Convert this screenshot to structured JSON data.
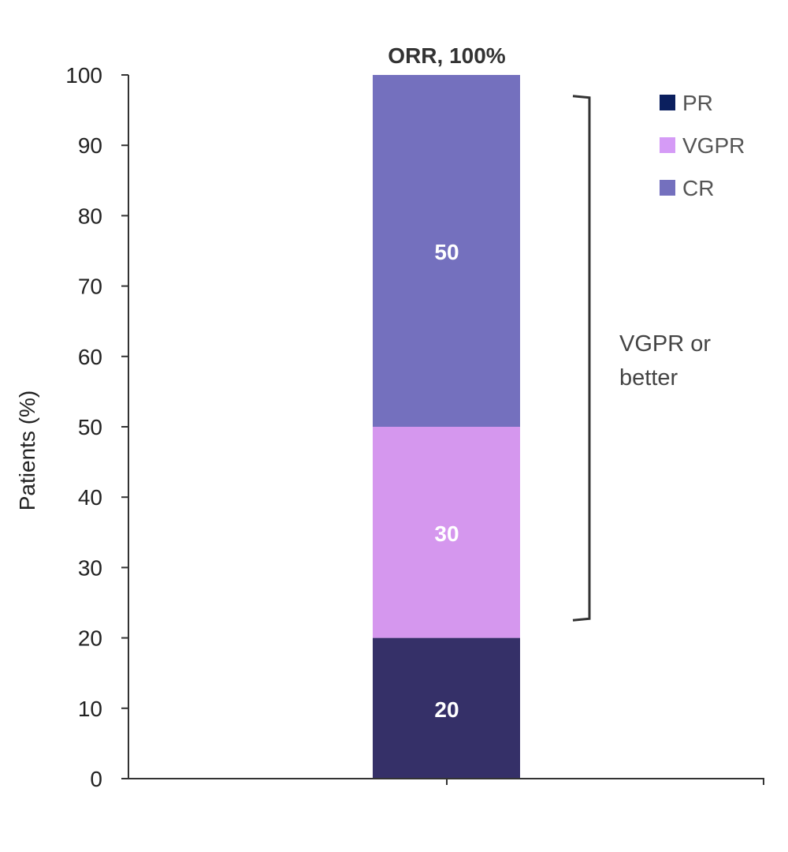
{
  "chart_data": {
    "type": "bar",
    "stacked": true,
    "categories": [
      ""
    ],
    "series": [
      {
        "name": "PR",
        "values": [
          20
        ],
        "color": "#353068",
        "legend_color": "#0b1f5e"
      },
      {
        "name": "VGPR",
        "values": [
          30
        ],
        "color": "#d597ee",
        "legend_color": "#d59bf6"
      },
      {
        "name": "CR",
        "values": [
          50
        ],
        "color": "#7470be",
        "legend_color": "#7470be"
      }
    ],
    "data_labels": [
      "20",
      "30",
      "50"
    ],
    "top_label": "ORR, 100%",
    "ylabel": "Patients (%)",
    "xlabel": "",
    "ylim": [
      0,
      100
    ],
    "yticks": [
      "0",
      "10",
      "20",
      "30",
      "40",
      "50",
      "60",
      "70",
      "80",
      "90",
      "100"
    ],
    "grid": false,
    "legend": [
      "PR",
      "VGPR",
      "CR"
    ],
    "legend_position": "top-right",
    "annotation": {
      "lines": [
        "VGPR or",
        "better"
      ],
      "range": [
        22.5,
        97
      ]
    }
  }
}
